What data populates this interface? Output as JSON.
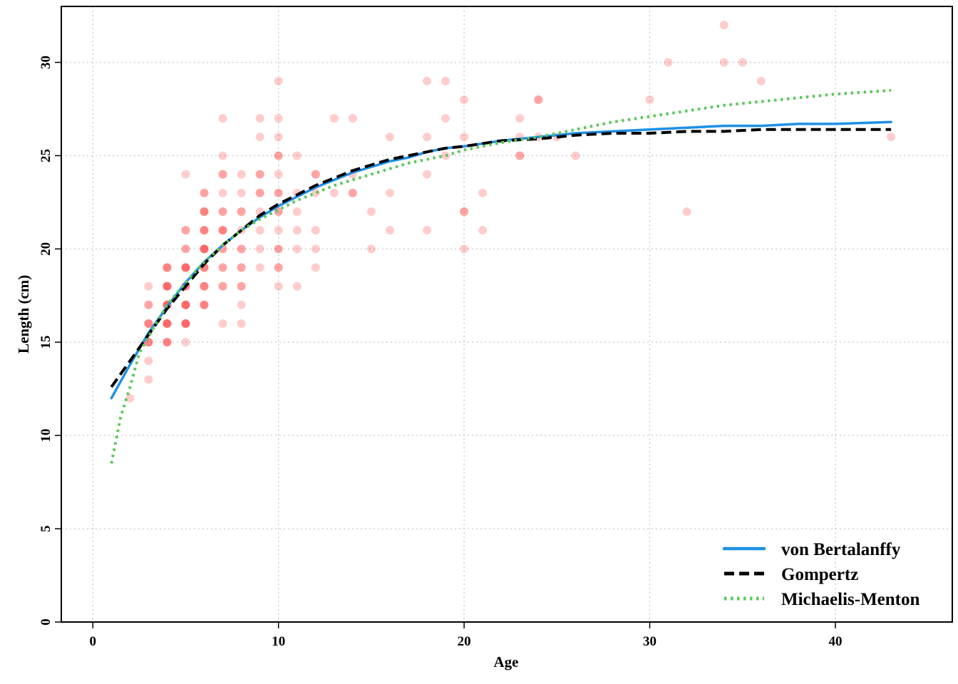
{
  "chart_data": {
    "type": "scatter",
    "xlabel": "Age",
    "ylabel": "Length (cm)",
    "xlim": [
      -1.7,
      46.3
    ],
    "ylim": [
      0,
      33
    ],
    "xticks": [
      "0",
      "10",
      "20",
      "30",
      "40"
    ],
    "yticks": [
      "0",
      "5",
      "10",
      "15",
      "20",
      "25",
      "30"
    ],
    "grid": true,
    "legend_position": "bottom-right",
    "points_color": "#ff0000",
    "points": [
      [
        2,
        12
      ],
      [
        3,
        13
      ],
      [
        3,
        14
      ],
      [
        3,
        15
      ],
      [
        3,
        15
      ],
      [
        3,
        15
      ],
      [
        3,
        16
      ],
      [
        3,
        16
      ],
      [
        3,
        16
      ],
      [
        3,
        17
      ],
      [
        3,
        17
      ],
      [
        3,
        18
      ],
      [
        4,
        15
      ],
      [
        4,
        15
      ],
      [
        4,
        15
      ],
      [
        4,
        16
      ],
      [
        4,
        16
      ],
      [
        4,
        16
      ],
      [
        4,
        16
      ],
      [
        4,
        17
      ],
      [
        4,
        17
      ],
      [
        4,
        17
      ],
      [
        4,
        17
      ],
      [
        4,
        18
      ],
      [
        4,
        18
      ],
      [
        4,
        18
      ],
      [
        4,
        18
      ],
      [
        4,
        19
      ],
      [
        4,
        19
      ],
      [
        4,
        19
      ],
      [
        5,
        15
      ],
      [
        5,
        16
      ],
      [
        5,
        16
      ],
      [
        5,
        16
      ],
      [
        5,
        16
      ],
      [
        5,
        17
      ],
      [
        5,
        17
      ],
      [
        5,
        17
      ],
      [
        5,
        17
      ],
      [
        5,
        18
      ],
      [
        5,
        18
      ],
      [
        5,
        18
      ],
      [
        5,
        19
      ],
      [
        5,
        19
      ],
      [
        5,
        19
      ],
      [
        5,
        19
      ],
      [
        5,
        20
      ],
      [
        5,
        20
      ],
      [
        5,
        21
      ],
      [
        5,
        21
      ],
      [
        5,
        24
      ],
      [
        6,
        17
      ],
      [
        6,
        17
      ],
      [
        6,
        17
      ],
      [
        6,
        18
      ],
      [
        6,
        18
      ],
      [
        6,
        18
      ],
      [
        6,
        19
      ],
      [
        6,
        19
      ],
      [
        6,
        19
      ],
      [
        6,
        20
      ],
      [
        6,
        20
      ],
      [
        6,
        20
      ],
      [
        6,
        20
      ],
      [
        6,
        21
      ],
      [
        6,
        21
      ],
      [
        6,
        21
      ],
      [
        6,
        22
      ],
      [
        6,
        22
      ],
      [
        6,
        22
      ],
      [
        6,
        23
      ],
      [
        6,
        23
      ],
      [
        7,
        16
      ],
      [
        7,
        18
      ],
      [
        7,
        18
      ],
      [
        7,
        19
      ],
      [
        7,
        19
      ],
      [
        7,
        20
      ],
      [
        7,
        20
      ],
      [
        7,
        21
      ],
      [
        7,
        21
      ],
      [
        7,
        21
      ],
      [
        7,
        22
      ],
      [
        7,
        22
      ],
      [
        7,
        23
      ],
      [
        7,
        24
      ],
      [
        7,
        24
      ],
      [
        7,
        25
      ],
      [
        7,
        27
      ],
      [
        8,
        16
      ],
      [
        8,
        17
      ],
      [
        8,
        18
      ],
      [
        8,
        18
      ],
      [
        8,
        19
      ],
      [
        8,
        19
      ],
      [
        8,
        20
      ],
      [
        8,
        20
      ],
      [
        8,
        21
      ],
      [
        8,
        22
      ],
      [
        8,
        22
      ],
      [
        8,
        23
      ],
      [
        8,
        24
      ],
      [
        9,
        19
      ],
      [
        9,
        20
      ],
      [
        9,
        21
      ],
      [
        9,
        22
      ],
      [
        9,
        23
      ],
      [
        9,
        23
      ],
      [
        9,
        24
      ],
      [
        9,
        24
      ],
      [
        9,
        26
      ],
      [
        9,
        27
      ],
      [
        10,
        18
      ],
      [
        10,
        19
      ],
      [
        10,
        19
      ],
      [
        10,
        20
      ],
      [
        10,
        20
      ],
      [
        10,
        21
      ],
      [
        10,
        22
      ],
      [
        10,
        22
      ],
      [
        10,
        23
      ],
      [
        10,
        23
      ],
      [
        10,
        24
      ],
      [
        10,
        25
      ],
      [
        10,
        25
      ],
      [
        10,
        26
      ],
      [
        10,
        27
      ],
      [
        10,
        29
      ],
      [
        11,
        18
      ],
      [
        11,
        20
      ],
      [
        11,
        21
      ],
      [
        11,
        22
      ],
      [
        11,
        23
      ],
      [
        11,
        25
      ],
      [
        12,
        19
      ],
      [
        12,
        20
      ],
      [
        12,
        21
      ],
      [
        12,
        23
      ],
      [
        12,
        24
      ],
      [
        12,
        24
      ],
      [
        13,
        23
      ],
      [
        13,
        27
      ],
      [
        14,
        23
      ],
      [
        14,
        23
      ],
      [
        14,
        24
      ],
      [
        14,
        27
      ],
      [
        15,
        20
      ],
      [
        15,
        22
      ],
      [
        16,
        21
      ],
      [
        16,
        23
      ],
      [
        16,
        26
      ],
      [
        18,
        21
      ],
      [
        18,
        24
      ],
      [
        18,
        26
      ],
      [
        18,
        29
      ],
      [
        19,
        25
      ],
      [
        19,
        27
      ],
      [
        19,
        29
      ],
      [
        20,
        20
      ],
      [
        20,
        22
      ],
      [
        20,
        22
      ],
      [
        20,
        26
      ],
      [
        20,
        28
      ],
      [
        21,
        21
      ],
      [
        21,
        23
      ],
      [
        23,
        25
      ],
      [
        23,
        25
      ],
      [
        23,
        26
      ],
      [
        23,
        27
      ],
      [
        24,
        26
      ],
      [
        24,
        28
      ],
      [
        24,
        28
      ],
      [
        25,
        26
      ],
      [
        26,
        25
      ],
      [
        30,
        28
      ],
      [
        31,
        30
      ],
      [
        32,
        22
      ],
      [
        34,
        30
      ],
      [
        34,
        32
      ],
      [
        35,
        30
      ],
      [
        36,
        29
      ],
      [
        43,
        26
      ]
    ],
    "series": [
      {
        "name": "von Bertalanffy",
        "color": "#1e90e6",
        "x": [
          1,
          2,
          3,
          4,
          5,
          6,
          7,
          8,
          9,
          10,
          11,
          12,
          13,
          14,
          15,
          16,
          17,
          18,
          19,
          20,
          22,
          24,
          26,
          28,
          30,
          32,
          34,
          36,
          38,
          40,
          43
        ],
        "y": [
          12.0,
          13.8,
          15.5,
          16.9,
          18.2,
          19.3,
          20.2,
          21.0,
          21.7,
          22.3,
          22.8,
          23.3,
          23.7,
          24.1,
          24.4,
          24.7,
          24.9,
          25.2,
          25.4,
          25.5,
          25.8,
          26.0,
          26.2,
          26.3,
          26.4,
          26.5,
          26.6,
          26.6,
          26.7,
          26.7,
          26.8
        ]
      },
      {
        "name": "Gompertz",
        "color": "#000000",
        "x": [
          1,
          2,
          3,
          4,
          5,
          6,
          7,
          8,
          9,
          10,
          11,
          12,
          13,
          14,
          15,
          16,
          17,
          18,
          19,
          20,
          22,
          24,
          26,
          28,
          30,
          32,
          34,
          36,
          38,
          40,
          43
        ],
        "y": [
          12.6,
          14.0,
          15.4,
          16.8,
          18.0,
          19.2,
          20.2,
          21.0,
          21.8,
          22.4,
          22.9,
          23.4,
          23.8,
          24.2,
          24.5,
          24.8,
          25.0,
          25.2,
          25.4,
          25.5,
          25.8,
          25.9,
          26.1,
          26.2,
          26.2,
          26.3,
          26.3,
          26.4,
          26.4,
          26.4,
          26.4
        ]
      },
      {
        "name": "Michaelis-Menton",
        "color": "#5bc85b",
        "x": [
          1,
          1.5,
          2,
          2.5,
          3,
          4,
          5,
          6,
          7,
          8,
          9,
          10,
          11,
          12,
          13,
          14,
          15,
          16,
          17,
          18,
          19,
          20,
          22,
          24,
          26,
          28,
          30,
          32,
          34,
          36,
          38,
          40,
          43
        ],
        "y": [
          8.5,
          11.0,
          12.6,
          14.4,
          15.3,
          17.0,
          18.2,
          19.3,
          20.2,
          21.0,
          21.6,
          22.1,
          22.6,
          23.0,
          23.4,
          23.7,
          24.0,
          24.3,
          24.6,
          24.8,
          25.0,
          25.3,
          25.7,
          26.0,
          26.4,
          26.8,
          27.1,
          27.4,
          27.7,
          27.9,
          28.1,
          28.3,
          28.5
        ]
      }
    ]
  }
}
